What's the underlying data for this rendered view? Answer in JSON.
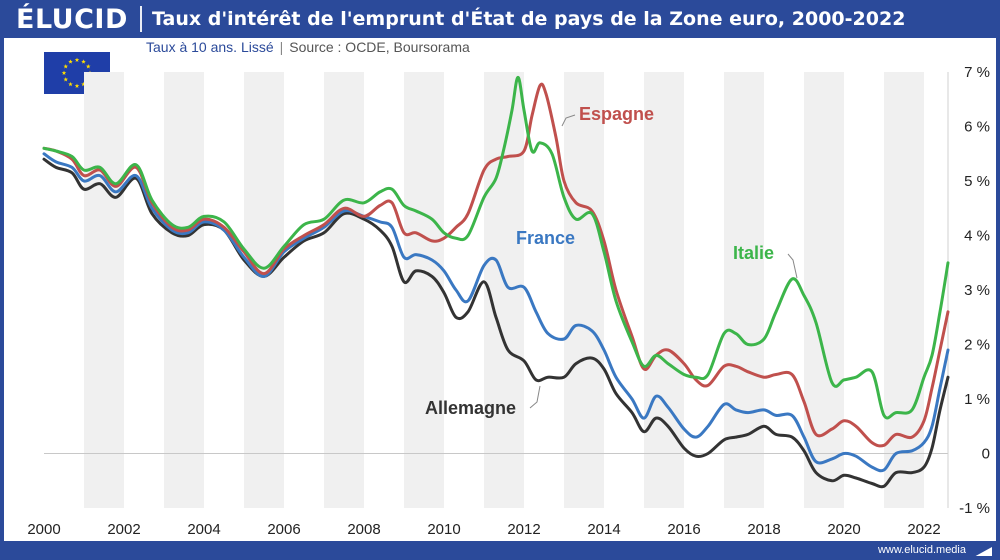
{
  "header": {
    "brand": "ÉLUCID",
    "title": "Taux d'intérêt de l'emprunt d'État de pays de la Zone euro, 2000-2022"
  },
  "subtitle": {
    "main": "Taux à 10 ans. Lissé",
    "divider": "|",
    "source": "Source : OCDE, Boursorama"
  },
  "footer": {
    "url": "www.elucid.media"
  },
  "colors": {
    "brand": "#2b4a9a",
    "allemagne": "#333333",
    "france": "#3a78c2",
    "espagne": "#c0504d",
    "italie": "#3cb54a"
  },
  "chart_data": {
    "type": "line",
    "title": "Taux d'intérêt de l'emprunt d'État de pays de la Zone euro, 2000-2022",
    "subtitle": "Taux à 10 ans. Lissé",
    "xlim": [
      2000,
      2022.6
    ],
    "ylim": [
      -1,
      7
    ],
    "x_ticks": [
      2000,
      2002,
      2004,
      2006,
      2008,
      2010,
      2012,
      2014,
      2016,
      2018,
      2020,
      2022
    ],
    "y_ticks": [
      {
        "value": 7,
        "label": "7 %"
      },
      {
        "value": 6,
        "label": "6 %"
      },
      {
        "value": 5,
        "label": "5 %"
      },
      {
        "value": 4,
        "label": "4 %"
      },
      {
        "value": 3,
        "label": "3 %"
      },
      {
        "value": 2,
        "label": "2 %"
      },
      {
        "value": 1,
        "label": "1 %"
      },
      {
        "value": 0,
        "label": "0"
      },
      {
        "value": -1,
        "label": "-1 %"
      }
    ],
    "grid": "alternating vertical bands",
    "series": [
      {
        "name": "Allemagne",
        "color": "#333333",
        "x": [
          2000,
          2000.3,
          2000.7,
          2001,
          2001.4,
          2001.8,
          2002.3,
          2002.7,
          2003.2,
          2003.6,
          2004,
          2004.5,
          2005,
          2005.5,
          2006,
          2006.5,
          2007,
          2007.5,
          2008,
          2008.4,
          2008.7,
          2009,
          2009.3,
          2009.7,
          2010,
          2010.3,
          2010.6,
          2011,
          2011.3,
          2011.6,
          2012,
          2012.3,
          2012.6,
          2013,
          2013.3,
          2013.7,
          2014,
          2014.3,
          2014.7,
          2015,
          2015.3,
          2015.6,
          2016,
          2016.3,
          2016.6,
          2017,
          2017.3,
          2017.6,
          2018,
          2018.3,
          2018.7,
          2019,
          2019.3,
          2019.7,
          2020,
          2020.3,
          2020.7,
          2021,
          2021.3,
          2021.7,
          2022,
          2022.2,
          2022.4,
          2022.6
        ],
        "y": [
          5.4,
          5.25,
          5.15,
          4.85,
          4.95,
          4.7,
          5.05,
          4.4,
          4.05,
          4.0,
          4.2,
          4.1,
          3.55,
          3.25,
          3.6,
          3.9,
          4.05,
          4.4,
          4.3,
          4.1,
          3.8,
          3.15,
          3.35,
          3.25,
          2.95,
          2.5,
          2.6,
          3.15,
          2.5,
          1.9,
          1.7,
          1.35,
          1.4,
          1.4,
          1.65,
          1.75,
          1.55,
          1.1,
          0.75,
          0.4,
          0.65,
          0.5,
          0.1,
          -0.05,
          0.0,
          0.25,
          0.3,
          0.35,
          0.5,
          0.35,
          0.3,
          0.05,
          -0.35,
          -0.5,
          -0.4,
          -0.45,
          -0.55,
          -0.6,
          -0.35,
          -0.35,
          -0.25,
          0.1,
          0.8,
          1.4
        ]
      },
      {
        "name": "France",
        "color": "#3a78c2",
        "x": [
          2000,
          2000.3,
          2000.7,
          2001,
          2001.4,
          2001.8,
          2002.3,
          2002.7,
          2003.2,
          2003.6,
          2004,
          2004.5,
          2005,
          2005.5,
          2006,
          2006.5,
          2007,
          2007.5,
          2008,
          2008.4,
          2008.7,
          2009,
          2009.3,
          2009.7,
          2010,
          2010.3,
          2010.6,
          2011,
          2011.3,
          2011.6,
          2012,
          2012.3,
          2012.6,
          2013,
          2013.3,
          2013.7,
          2014,
          2014.3,
          2014.7,
          2015,
          2015.3,
          2015.6,
          2016,
          2016.3,
          2016.6,
          2017,
          2017.3,
          2017.6,
          2018,
          2018.3,
          2018.7,
          2019,
          2019.3,
          2019.7,
          2020,
          2020.3,
          2020.7,
          2021,
          2021.3,
          2021.7,
          2022,
          2022.2,
          2022.4,
          2022.6
        ],
        "y": [
          5.5,
          5.35,
          5.25,
          5.0,
          5.1,
          4.8,
          5.1,
          4.5,
          4.1,
          4.05,
          4.25,
          4.1,
          3.6,
          3.25,
          3.7,
          3.95,
          4.15,
          4.45,
          4.35,
          4.25,
          4.15,
          3.6,
          3.65,
          3.55,
          3.35,
          3.0,
          2.8,
          3.45,
          3.55,
          3.05,
          3.05,
          2.6,
          2.2,
          2.1,
          2.35,
          2.25,
          1.9,
          1.4,
          1.0,
          0.65,
          1.05,
          0.85,
          0.45,
          0.3,
          0.5,
          0.9,
          0.8,
          0.75,
          0.8,
          0.7,
          0.7,
          0.3,
          -0.15,
          -0.1,
          0.0,
          -0.05,
          -0.25,
          -0.3,
          0.0,
          0.05,
          0.2,
          0.5,
          1.2,
          1.9
        ]
      },
      {
        "name": "Espagne",
        "color": "#c0504d",
        "x": [
          2000,
          2000.3,
          2000.7,
          2001,
          2001.4,
          2001.8,
          2002.3,
          2002.7,
          2003.2,
          2003.6,
          2004,
          2004.5,
          2005,
          2005.5,
          2006,
          2006.5,
          2007,
          2007.5,
          2008,
          2008.4,
          2008.7,
          2009,
          2009.3,
          2009.7,
          2010,
          2010.3,
          2010.6,
          2011,
          2011.3,
          2011.6,
          2012,
          2012.2,
          2012.4,
          2012.55,
          2012.8,
          2013,
          2013.3,
          2013.7,
          2014,
          2014.3,
          2014.7,
          2015,
          2015.3,
          2015.6,
          2016,
          2016.3,
          2016.6,
          2017,
          2017.3,
          2017.6,
          2018,
          2018.3,
          2018.7,
          2019,
          2019.3,
          2019.7,
          2020,
          2020.3,
          2020.7,
          2021,
          2021.3,
          2021.7,
          2022,
          2022.2,
          2022.4,
          2022.6
        ],
        "y": [
          5.6,
          5.55,
          5.4,
          5.1,
          5.2,
          4.9,
          5.25,
          4.6,
          4.15,
          4.1,
          4.3,
          4.15,
          3.7,
          3.3,
          3.75,
          4.0,
          4.2,
          4.5,
          4.35,
          4.55,
          4.6,
          4.05,
          4.05,
          3.9,
          3.95,
          4.15,
          4.4,
          5.2,
          5.4,
          5.45,
          5.55,
          6.2,
          6.75,
          6.6,
          5.8,
          5.0,
          4.6,
          4.45,
          3.9,
          3.0,
          2.15,
          1.55,
          1.8,
          1.9,
          1.65,
          1.35,
          1.25,
          1.6,
          1.6,
          1.5,
          1.4,
          1.45,
          1.45,
          0.95,
          0.35,
          0.45,
          0.6,
          0.5,
          0.2,
          0.15,
          0.35,
          0.3,
          0.6,
          1.2,
          1.9,
          2.6
        ]
      },
      {
        "name": "Italie",
        "color": "#3cb54a",
        "x": [
          2000,
          2000.3,
          2000.7,
          2001,
          2001.4,
          2001.8,
          2002.3,
          2002.7,
          2003.2,
          2003.6,
          2004,
          2004.5,
          2005,
          2005.5,
          2006,
          2006.5,
          2007,
          2007.5,
          2008,
          2008.4,
          2008.7,
          2009,
          2009.3,
          2009.7,
          2010,
          2010.3,
          2010.6,
          2011,
          2011.3,
          2011.5,
          2011.7,
          2011.85,
          2012,
          2012.2,
          2012.4,
          2012.7,
          2013,
          2013.3,
          2013.7,
          2014,
          2014.3,
          2014.7,
          2015,
          2015.3,
          2015.6,
          2016,
          2016.3,
          2016.6,
          2017,
          2017.3,
          2017.6,
          2018,
          2018.3,
          2018.7,
          2019,
          2019.3,
          2019.7,
          2020,
          2020.3,
          2020.7,
          2021,
          2021.3,
          2021.7,
          2022,
          2022.2,
          2022.4,
          2022.6
        ],
        "y": [
          5.6,
          5.55,
          5.45,
          5.2,
          5.25,
          4.95,
          5.3,
          4.65,
          4.2,
          4.15,
          4.35,
          4.25,
          3.75,
          3.4,
          3.8,
          4.2,
          4.3,
          4.65,
          4.6,
          4.8,
          4.85,
          4.55,
          4.45,
          4.3,
          4.05,
          3.95,
          4.0,
          4.7,
          5.05,
          5.6,
          6.3,
          6.9,
          6.3,
          5.55,
          5.7,
          5.5,
          4.7,
          4.3,
          4.4,
          3.7,
          2.8,
          2.05,
          1.6,
          1.8,
          1.65,
          1.45,
          1.4,
          1.45,
          2.2,
          2.2,
          2.0,
          2.1,
          2.6,
          3.2,
          2.9,
          2.4,
          1.3,
          1.35,
          1.4,
          1.5,
          0.7,
          0.75,
          0.8,
          1.4,
          1.8,
          2.6,
          3.5
        ]
      }
    ],
    "annotations": [
      {
        "series": "Espagne",
        "text": "Espagne"
      },
      {
        "series": "France",
        "text": "France"
      },
      {
        "series": "Italie",
        "text": "Italie"
      },
      {
        "series": "Allemagne",
        "text": "Allemagne"
      }
    ]
  }
}
